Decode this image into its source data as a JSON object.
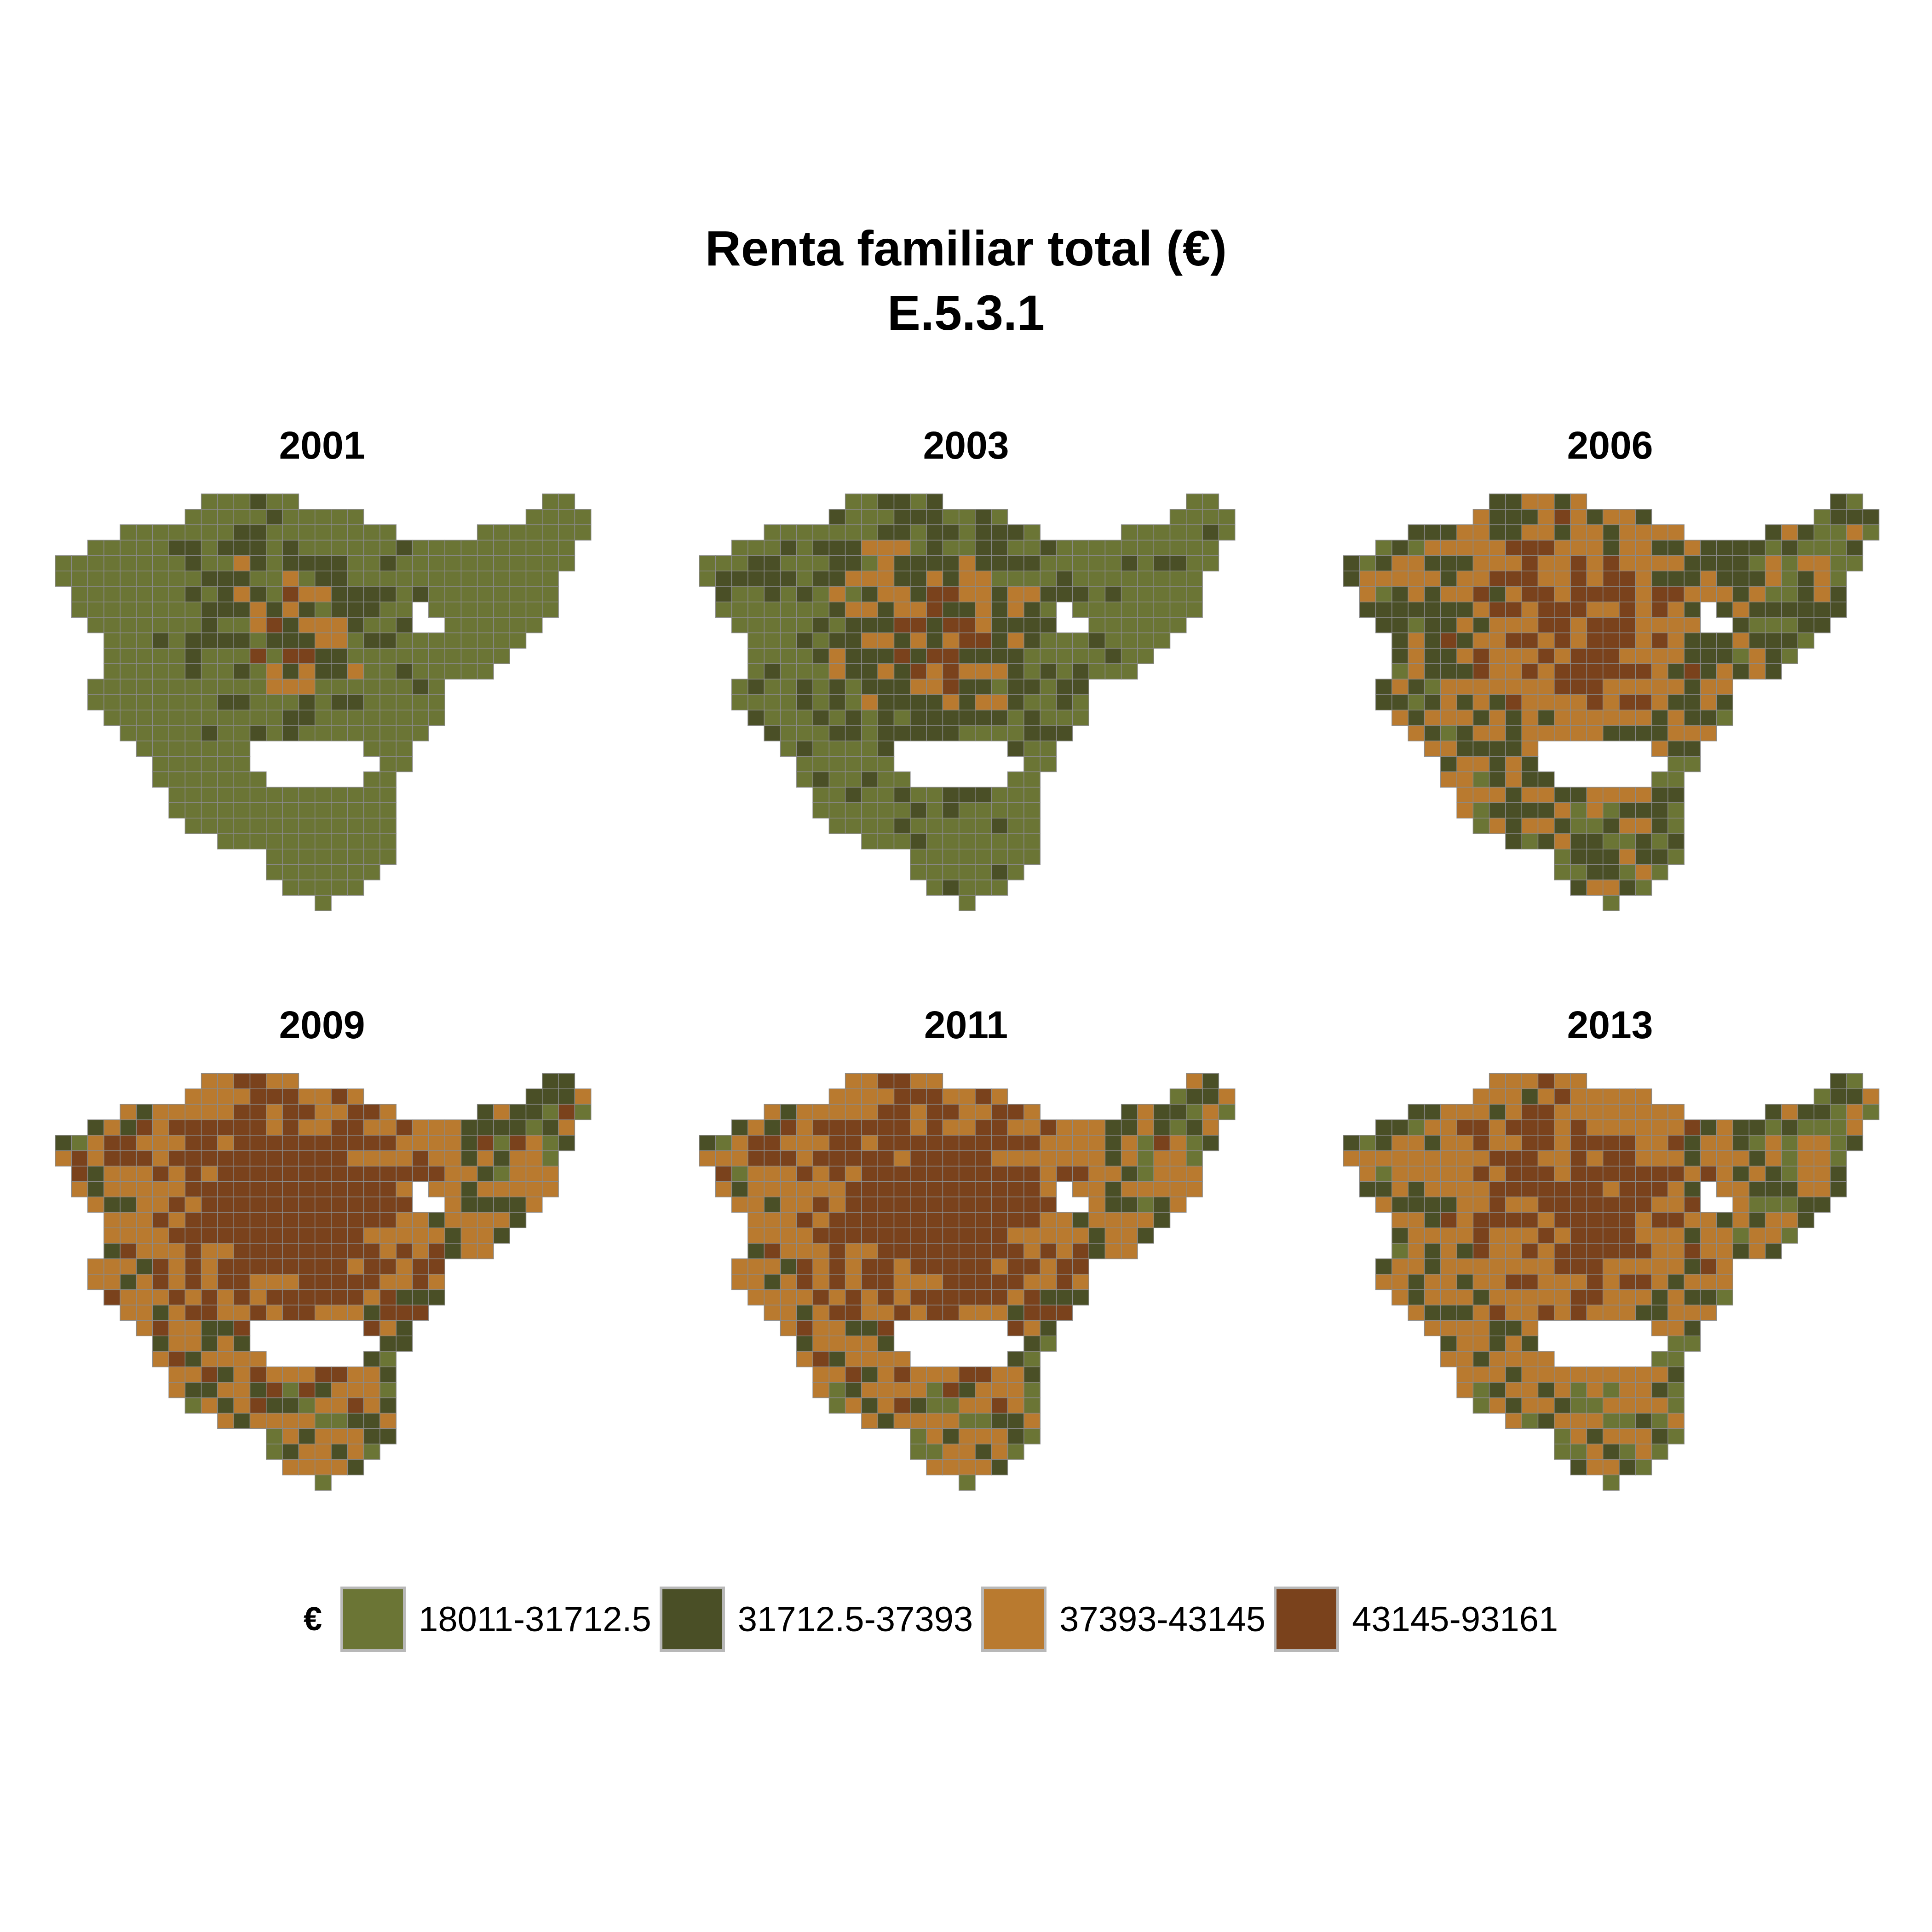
{
  "title": {
    "line1": "Renta familiar total (€)",
    "line2": "E.5.3.1"
  },
  "panels": [
    {
      "year": "2001",
      "shares": [
        0.8,
        0.15,
        0.04,
        0.01
      ]
    },
    {
      "year": "2003",
      "shares": [
        0.55,
        0.33,
        0.09,
        0.03
      ]
    },
    {
      "year": "2006",
      "shares": [
        0.12,
        0.35,
        0.4,
        0.13
      ]
    },
    {
      "year": "2009",
      "shares": [
        0.04,
        0.15,
        0.41,
        0.4
      ]
    },
    {
      "year": "2011",
      "shares": [
        0.06,
        0.12,
        0.44,
        0.38
      ]
    },
    {
      "year": "2013",
      "shares": [
        0.1,
        0.18,
        0.52,
        0.2
      ]
    }
  ],
  "legend": {
    "title": "€",
    "items": [
      {
        "label": "18011-31712.5",
        "color": "#6b7535"
      },
      {
        "label": "31712.5-37393",
        "color": "#4a4f26"
      },
      {
        "label": "37393-43145",
        "color": "#b97a2f"
      },
      {
        "label": "43145-93161",
        "color": "#7a421c"
      }
    ]
  },
  "border_color": "#8a8a8a"
}
